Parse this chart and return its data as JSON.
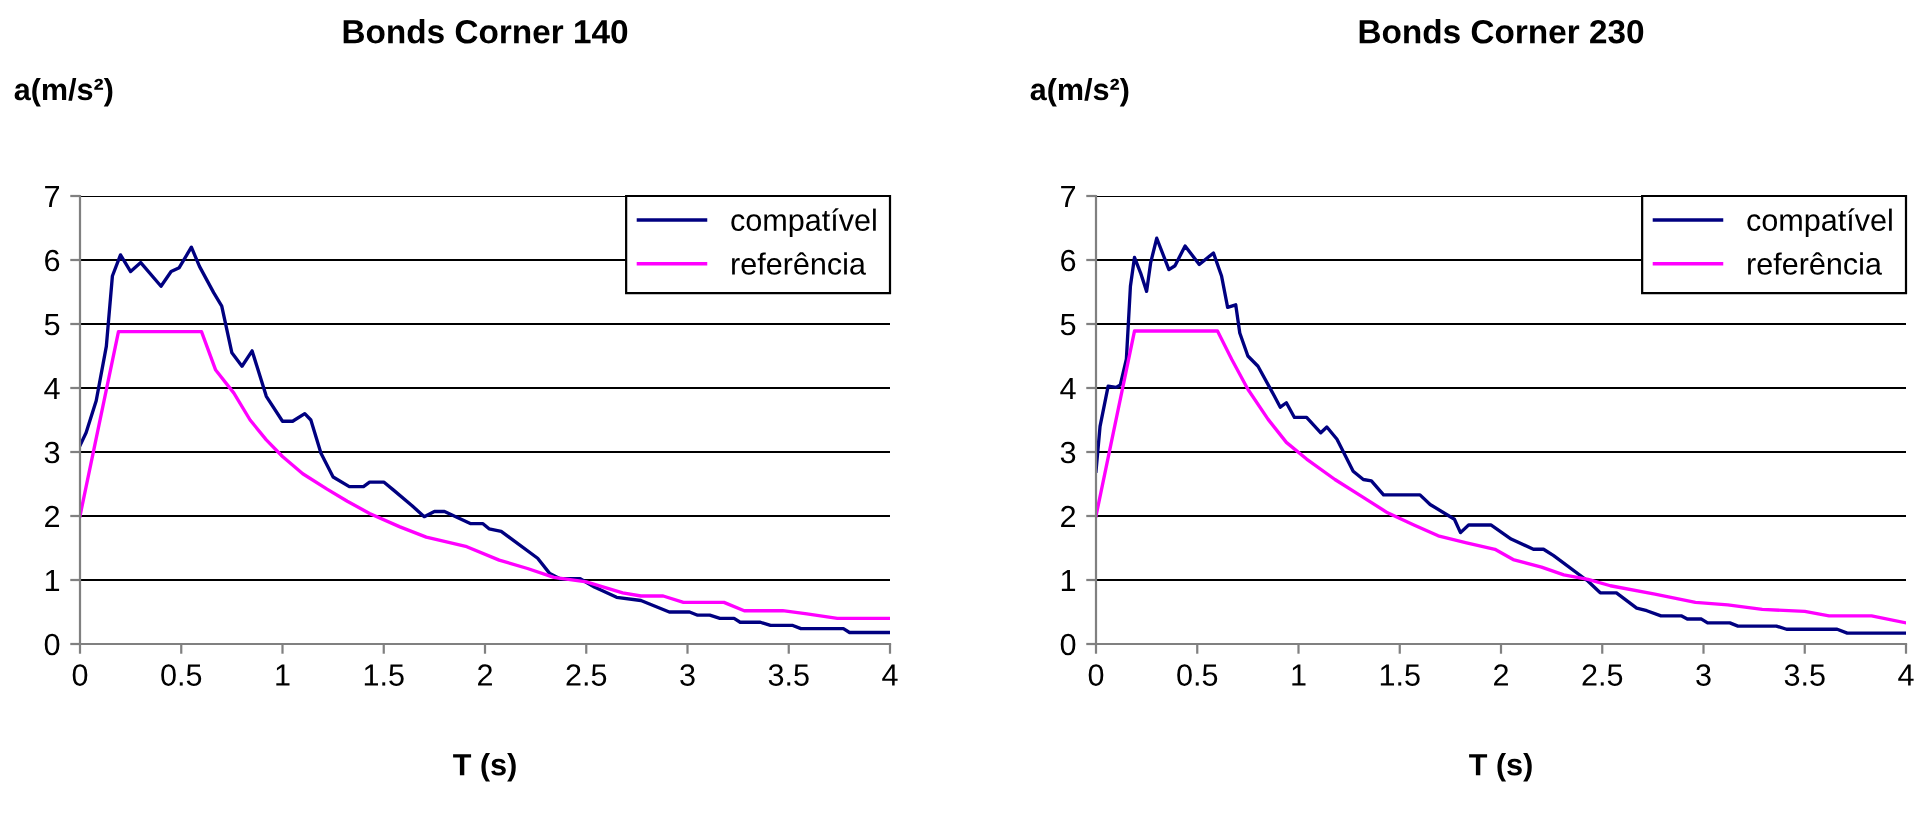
{
  "chart_data": [
    {
      "type": "line",
      "title": "Bonds Corner 140",
      "xlabel": "T (s)",
      "ylabel": "a(m/s²)",
      "xlim": [
        0,
        4
      ],
      "xticks": [
        0,
        0.5,
        1,
        1.5,
        2,
        2.5,
        3,
        3.5,
        4
      ],
      "ylim": [
        0,
        7
      ],
      "yticks": [
        0,
        1,
        2,
        3,
        4,
        5,
        6,
        7
      ],
      "grid": "y",
      "legend": "top right",
      "series": [
        {
          "name": "compatível",
          "color": "#000080",
          "x": [
            0,
            0.03,
            0.08,
            0.13,
            0.16,
            0.2,
            0.25,
            0.3,
            0.4,
            0.45,
            0.49,
            0.55,
            0.59,
            0.66,
            0.7,
            0.75,
            0.8,
            0.85,
            0.92,
            1.0,
            1.05,
            1.11,
            1.14,
            1.19,
            1.25,
            1.33,
            1.4,
            1.43,
            1.5,
            1.55,
            1.64,
            1.7,
            1.75,
            1.8,
            1.93,
            1.99,
            2.02,
            2.08,
            2.26,
            2.32,
            2.37,
            2.47,
            2.54,
            2.65,
            2.77,
            2.91,
            3.01,
            3.05,
            3.11,
            3.16,
            3.23,
            3.26,
            3.36,
            3.41,
            3.52,
            3.56,
            3.77,
            3.8,
            4
          ],
          "values": [
            3.1,
            3.3,
            3.8,
            4.65,
            5.75,
            6.08,
            5.82,
            5.96,
            5.59,
            5.82,
            5.88,
            6.2,
            5.9,
            5.49,
            5.28,
            4.55,
            4.34,
            4.58,
            3.87,
            3.48,
            3.48,
            3.6,
            3.5,
            2.98,
            2.61,
            2.46,
            2.46,
            2.53,
            2.53,
            2.4,
            2.16,
            1.99,
            2.07,
            2.07,
            1.88,
            1.88,
            1.8,
            1.76,
            1.34,
            1.1,
            1.02,
            1.02,
            0.89,
            0.73,
            0.68,
            0.5,
            0.5,
            0.45,
            0.45,
            0.4,
            0.4,
            0.34,
            0.34,
            0.29,
            0.29,
            0.24,
            0.24,
            0.18,
            0.18
          ]
        },
        {
          "name": "referência",
          "color": "#ff00ff",
          "x": [
            0,
            0.19,
            0.6,
            0.67,
            0.76,
            0.84,
            0.92,
            1.0,
            1.1,
            1.22,
            1.32,
            1.43,
            1.58,
            1.71,
            1.91,
            2.07,
            2.21,
            2.34,
            2.5,
            2.68,
            2.77,
            2.88,
            2.98,
            3.18,
            3.28,
            3.47,
            3.59,
            3.74,
            4
          ],
          "values": [
            2.0,
            4.88,
            4.88,
            4.28,
            3.92,
            3.5,
            3.19,
            2.93,
            2.66,
            2.42,
            2.23,
            2.04,
            1.83,
            1.67,
            1.52,
            1.31,
            1.18,
            1.04,
            0.97,
            0.8,
            0.75,
            0.75,
            0.65,
            0.65,
            0.52,
            0.52,
            0.47,
            0.4,
            0.4
          ]
        }
      ]
    },
    {
      "type": "line",
      "title": "Bonds Corner 230",
      "xlabel": "T (s)",
      "ylabel": "a(m/s²)",
      "xlim": [
        0,
        4
      ],
      "xticks": [
        0,
        0.5,
        1,
        1.5,
        2,
        2.5,
        3,
        3.5,
        4
      ],
      "ylim": [
        0,
        7
      ],
      "yticks": [
        0,
        1,
        2,
        3,
        4,
        5,
        6,
        7
      ],
      "grid": "y",
      "legend": "top right",
      "series": [
        {
          "name": "compatível",
          "color": "#000080",
          "x": [
            0,
            0.02,
            0.06,
            0.1,
            0.12,
            0.15,
            0.17,
            0.19,
            0.22,
            0.25,
            0.27,
            0.3,
            0.36,
            0.39,
            0.44,
            0.51,
            0.58,
            0.62,
            0.65,
            0.69,
            0.71,
            0.75,
            0.8,
            0.88,
            0.91,
            0.94,
            0.98,
            1.04,
            1.11,
            1.14,
            1.19,
            1.27,
            1.32,
            1.36,
            1.42,
            1.6,
            1.65,
            1.77,
            1.8,
            1.84,
            1.95,
            2.05,
            2.16,
            2.21,
            2.26,
            2.43,
            2.49,
            2.57,
            2.67,
            2.72,
            2.79,
            2.89,
            2.92,
            2.99,
            3.02,
            3.13,
            3.17,
            3.36,
            3.41,
            3.66,
            3.71,
            4
          ],
          "values": [
            2.7,
            3.4,
            4.03,
            4.01,
            4.05,
            4.45,
            5.59,
            6.04,
            5.8,
            5.51,
            5.96,
            6.34,
            5.85,
            5.91,
            6.22,
            5.93,
            6.11,
            5.75,
            5.26,
            5.3,
            4.86,
            4.5,
            4.34,
            3.88,
            3.7,
            3.77,
            3.54,
            3.54,
            3.3,
            3.39,
            3.2,
            2.7,
            2.57,
            2.55,
            2.33,
            2.33,
            2.18,
            1.95,
            1.74,
            1.86,
            1.86,
            1.64,
            1.48,
            1.48,
            1.38,
            0.98,
            0.8,
            0.8,
            0.56,
            0.52,
            0.44,
            0.44,
            0.39,
            0.39,
            0.33,
            0.33,
            0.28,
            0.28,
            0.23,
            0.23,
            0.17,
            0.17
          ]
        },
        {
          "name": "referência",
          "color": "#ff00ff",
          "x": [
            0,
            0.19,
            0.6,
            0.67,
            0.75,
            0.85,
            0.94,
            1.04,
            1.18,
            1.31,
            1.44,
            1.57,
            1.69,
            1.83,
            1.97,
            2.06,
            2.2,
            2.31,
            2.43,
            2.54,
            2.76,
            2.96,
            3.12,
            3.29,
            3.5,
            3.62,
            3.83,
            4
          ],
          "values": [
            2.0,
            4.89,
            4.89,
            4.45,
            3.98,
            3.51,
            3.15,
            2.89,
            2.57,
            2.31,
            2.05,
            1.86,
            1.69,
            1.58,
            1.48,
            1.32,
            1.2,
            1.08,
            1.01,
            0.91,
            0.78,
            0.65,
            0.61,
            0.54,
            0.51,
            0.44,
            0.44,
            0.33
          ]
        }
      ]
    }
  ]
}
